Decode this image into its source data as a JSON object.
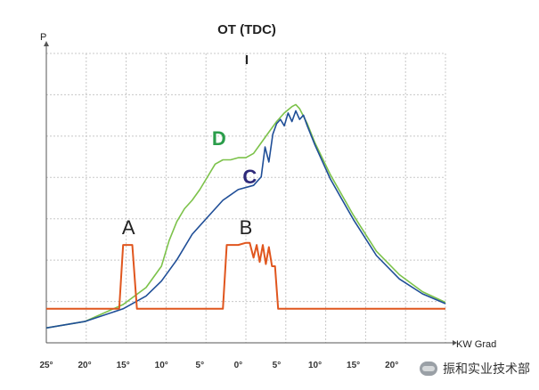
{
  "chart_data": {
    "type": "line",
    "title": "OT (TDC)",
    "tdc_marker": "I",
    "ylabel": "P",
    "xlabel": "KW Grad",
    "x_ticks": [
      "25°",
      "20°",
      "15°",
      "10°",
      "5°",
      "0°",
      "5°",
      "10°",
      "15°",
      "20°"
    ],
    "x_tick_values": [
      -25,
      -20,
      -15,
      -10,
      -5,
      0,
      5,
      10,
      15,
      20
    ],
    "xlim": [
      -25,
      27
    ],
    "ylim": [
      -0.3,
      6.5
    ],
    "grid": true,
    "series": [
      {
        "name": "D",
        "color": "#7cc24a",
        "width": 1.6,
        "x": [
          -25,
          -20,
          -15,
          -12,
          -10,
          -9,
          -8,
          -7,
          -6,
          -5,
          -4,
          -3,
          -2,
          -1,
          0,
          1,
          2,
          3,
          4,
          5,
          6,
          7,
          7.5,
          8,
          9,
          10,
          12,
          15,
          18,
          21,
          24,
          27
        ],
        "y": [
          0.05,
          0.2,
          0.6,
          1.0,
          1.5,
          2.1,
          2.55,
          2.85,
          3.05,
          3.3,
          3.6,
          3.9,
          4.0,
          4.0,
          4.05,
          4.05,
          4.15,
          4.4,
          4.65,
          4.9,
          5.1,
          5.25,
          5.3,
          5.2,
          4.85,
          4.4,
          3.65,
          2.7,
          1.85,
          1.3,
          0.9,
          0.65
        ]
      },
      {
        "name": "C",
        "color": "#1f4e97",
        "width": 1.6,
        "x": [
          -25,
          -20,
          -15,
          -12,
          -10,
          -8,
          -6,
          -4,
          -2,
          0,
          2,
          3,
          3.5,
          4,
          4.5,
          5,
          5.5,
          6,
          6.5,
          7,
          7.5,
          8,
          8.5,
          9,
          10,
          12,
          15,
          18,
          21,
          24,
          27
        ],
        "y": [
          0.05,
          0.2,
          0.5,
          0.8,
          1.15,
          1.65,
          2.25,
          2.65,
          3.05,
          3.3,
          3.4,
          3.6,
          4.3,
          3.95,
          4.6,
          4.85,
          4.95,
          4.8,
          5.1,
          4.9,
          5.15,
          4.95,
          5.05,
          4.8,
          4.35,
          3.55,
          2.6,
          1.75,
          1.2,
          0.85,
          0.62
        ]
      },
      {
        "name": "A/B",
        "color": "#e0561e",
        "width": 2,
        "x": [
          -25,
          -15.5,
          -15,
          -14.3,
          -13.8,
          -13.2,
          -12.7,
          -2,
          -1.5,
          0,
          1,
          1.5,
          2,
          2.4,
          2.8,
          3.2,
          3.6,
          4,
          4.4,
          4.8,
          5.2,
          5.5,
          27
        ],
        "y": [
          0.5,
          0.5,
          2.0,
          2.0,
          2.0,
          0.5,
          0.5,
          0.5,
          2.0,
          2.0,
          2.05,
          2.05,
          1.7,
          2.0,
          1.6,
          2.0,
          1.55,
          1.95,
          1.5,
          1.5,
          0.5,
          0.5,
          0.5
        ]
      }
    ],
    "annotations": [
      {
        "text": "A",
        "x": -14.3,
        "y": 2.25,
        "color": "#222222"
      },
      {
        "text": "B",
        "x": 1.0,
        "y": 2.25,
        "color": "#222222"
      },
      {
        "text": "C",
        "x": 1.5,
        "y": 3.45,
        "color": "#2e2a7a"
      },
      {
        "text": "D",
        "x": -2.5,
        "y": 4.35,
        "color": "#2a9d4a"
      }
    ]
  },
  "watermark": {
    "text": "振和实业技术部"
  }
}
